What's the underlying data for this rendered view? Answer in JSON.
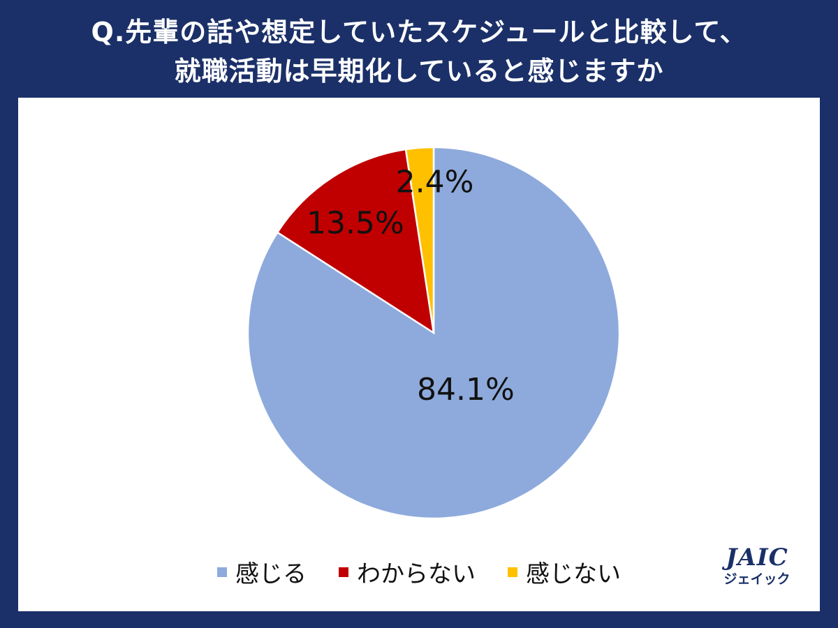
{
  "title": {
    "line1": "Q.先輩の話や想定していたスケジュールと比較して、",
    "line2": "就職活動は早期化していると感じますか"
  },
  "colors": {
    "background": "#1b3068",
    "panel": "#ffffff"
  },
  "chart_data": {
    "type": "pie",
    "slices": [
      {
        "name": "感じる",
        "value": 84.1,
        "label": "84.1%",
        "color": "#8eaadc"
      },
      {
        "name": "わからない",
        "value": 13.5,
        "label": "13.5%",
        "color": "#c00000"
      },
      {
        "name": "感じない",
        "value": 2.4,
        "label": "2.4%",
        "color": "#ffc000"
      }
    ],
    "legend_position": "bottom"
  },
  "logo": {
    "main": "JAIC",
    "sub": "ジェイック"
  }
}
